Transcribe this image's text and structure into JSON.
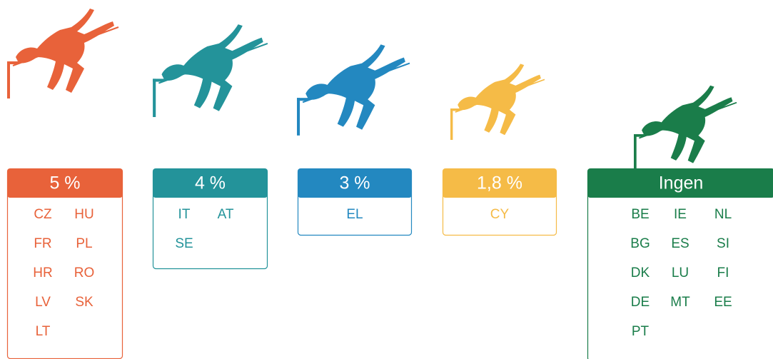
{
  "groups": [
    {
      "label": "5 %",
      "color": "#e8623a",
      "rows": [
        [
          "CZ",
          "HU"
        ],
        [
          "FR",
          "PL"
        ],
        [
          "HR",
          "RO"
        ],
        [
          "LV",
          "SK"
        ],
        [
          "LT"
        ]
      ]
    },
    {
      "label": "4 %",
      "color": "#23939a",
      "rows": [
        [
          "IT",
          "AT"
        ],
        [
          "SE"
        ]
      ]
    },
    {
      "label": "3 %",
      "color": "#2388c0",
      "rows": [
        [
          "EL"
        ]
      ]
    },
    {
      "label": "1,8 %",
      "color": "#f5bb47",
      "rows": [
        [
          "CY"
        ]
      ]
    },
    {
      "label": "Ingen",
      "color": "#1a7d4a",
      "rows": [
        [
          "BE",
          "IE",
          "NL"
        ],
        [
          "BG",
          "ES",
          "SI"
        ],
        [
          "DK",
          "LU",
          "FI"
        ],
        [
          "DE",
          "MT",
          "EE"
        ],
        [
          "PT"
        ]
      ]
    }
  ]
}
